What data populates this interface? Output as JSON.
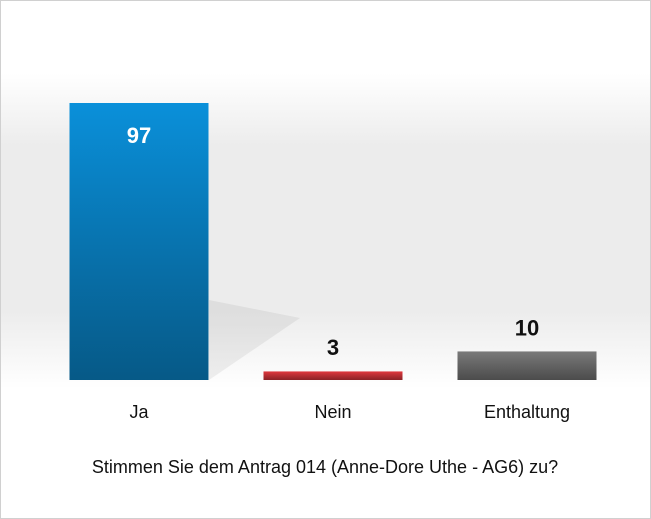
{
  "chart_data": {
    "type": "bar",
    "title": "Stimmen Sie dem Antrag 014 (Anne-Dore Uthe - AG6) zu?",
    "categories": [
      "Ja",
      "Nein",
      "Enthaltung"
    ],
    "values": [
      97,
      3,
      10
    ],
    "colors": [
      "#0a90da",
      "#e0383e",
      "#7a7a7a"
    ]
  }
}
